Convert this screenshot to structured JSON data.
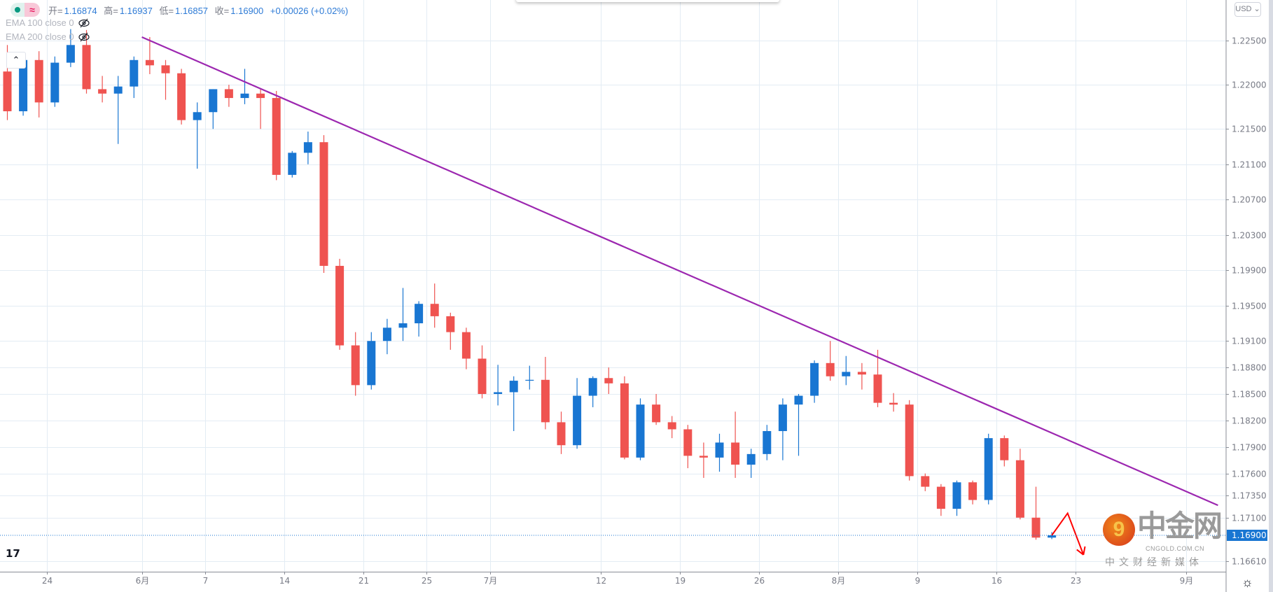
{
  "legend": {
    "open_label": "开=",
    "open": "1.16874",
    "high_label": "高=",
    "high": "1.16937",
    "low_label": "低=",
    "low": "1.16857",
    "close_label": "收=",
    "close": "1.16900",
    "change": "+0.00026 (+0.02%)"
  },
  "indicators": [
    {
      "label": "EMA 100 close 0",
      "icon": "eye-crossed-icon"
    },
    {
      "label": "EMA 200 close 0",
      "icon": "eye-crossed-icon"
    }
  ],
  "currency_button": "USD ⌄",
  "collapse_icon": "chevron-up-icon",
  "watermark": {
    "name": "中金网",
    "domain": "CNGOLD.COM.CN",
    "tagline": "中文财经新媒体"
  },
  "colors": {
    "up": "#1976d2",
    "down": "#ef5350",
    "trendline": "#9c27b0",
    "annotation": "#ff0000",
    "grid": "#e3ecf4",
    "last_price": "#1976d2"
  },
  "chart_data": {
    "type": "candlestick",
    "ylim": [
      1.162,
      1.2295
    ],
    "grid": true,
    "y_ticks": [
      "1.22500",
      "1.22000",
      "1.21500",
      "1.21100",
      "1.20700",
      "1.20300",
      "1.19900",
      "1.19500",
      "1.19100",
      "1.18800",
      "1.18500",
      "1.18200",
      "1.17900",
      "1.17600",
      "1.17350",
      "1.17100",
      "1.16610"
    ],
    "x_ticks": [
      {
        "label": "24",
        "date": "05-24"
      },
      {
        "label": "6月",
        "date": "06-01"
      },
      {
        "label": "7",
        "date": "06-07"
      },
      {
        "label": "14",
        "date": "06-14"
      },
      {
        "label": "21",
        "date": "06-21"
      },
      {
        "label": "25",
        "date": "06-25"
      },
      {
        "label": "7月",
        "date": "07-01"
      },
      {
        "label": "12",
        "date": "07-12"
      },
      {
        "label": "19",
        "date": "07-19"
      },
      {
        "label": "26",
        "date": "07-26"
      },
      {
        "label": "8月",
        "date": "08-02"
      },
      {
        "label": "9",
        "date": "08-09"
      },
      {
        "label": "16",
        "date": "08-16"
      },
      {
        "label": "23",
        "date": "08-23"
      },
      {
        "label": "9月",
        "date": "09-01"
      }
    ],
    "last_price": "1.16900",
    "candles": [
      {
        "d": "05-19",
        "o": 1.2215,
        "h": 1.2245,
        "l": 1.216,
        "c": 1.217
      },
      {
        "d": "05-20",
        "o": 1.217,
        "h": 1.2235,
        "l": 1.2165,
        "c": 1.2228
      },
      {
        "d": "05-21",
        "o": 1.2228,
        "h": 1.2238,
        "l": 1.2163,
        "c": 1.218
      },
      {
        "d": "05-24",
        "o": 1.218,
        "h": 1.2232,
        "l": 1.2175,
        "c": 1.2225
      },
      {
        "d": "05-25",
        "o": 1.2225,
        "h": 1.2263,
        "l": 1.222,
        "c": 1.2245
      },
      {
        "d": "05-26",
        "o": 1.2245,
        "h": 1.2262,
        "l": 1.219,
        "c": 1.2195
      },
      {
        "d": "05-27",
        "o": 1.2195,
        "h": 1.221,
        "l": 1.218,
        "c": 1.219
      },
      {
        "d": "05-28",
        "o": 1.219,
        "h": 1.221,
        "l": 1.2133,
        "c": 1.2198
      },
      {
        "d": "05-31",
        "o": 1.2198,
        "h": 1.2232,
        "l": 1.2185,
        "c": 1.2228
      },
      {
        "d": "06-01",
        "o": 1.2228,
        "h": 1.2254,
        "l": 1.2212,
        "c": 1.2222
      },
      {
        "d": "06-02",
        "o": 1.2222,
        "h": 1.2228,
        "l": 1.2183,
        "c": 1.2213
      },
      {
        "d": "06-03",
        "o": 1.2213,
        "h": 1.2218,
        "l": 1.2155,
        "c": 1.216
      },
      {
        "d": "06-04",
        "o": 1.216,
        "h": 1.218,
        "l": 1.2105,
        "c": 1.2169
      },
      {
        "d": "06-07",
        "o": 1.2169,
        "h": 1.2195,
        "l": 1.215,
        "c": 1.2195
      },
      {
        "d": "06-08",
        "o": 1.2195,
        "h": 1.22,
        "l": 1.2175,
        "c": 1.2185
      },
      {
        "d": "06-09",
        "o": 1.2185,
        "h": 1.2218,
        "l": 1.2178,
        "c": 1.219
      },
      {
        "d": "06-10",
        "o": 1.219,
        "h": 1.2195,
        "l": 1.215,
        "c": 1.2185
      },
      {
        "d": "06-11",
        "o": 1.2185,
        "h": 1.2193,
        "l": 1.2092,
        "c": 1.2098
      },
      {
        "d": "06-14",
        "o": 1.2098,
        "h": 1.2125,
        "l": 1.2095,
        "c": 1.2123
      },
      {
        "d": "06-15",
        "o": 1.2123,
        "h": 1.2147,
        "l": 1.211,
        "c": 1.2135
      },
      {
        "d": "06-16",
        "o": 1.2135,
        "h": 1.2143,
        "l": 1.1987,
        "c": 1.1995
      },
      {
        "d": "06-17",
        "o": 1.1995,
        "h": 1.2003,
        "l": 1.19,
        "c": 1.1905
      },
      {
        "d": "06-18",
        "o": 1.1905,
        "h": 1.192,
        "l": 1.1848,
        "c": 1.186
      },
      {
        "d": "06-21",
        "o": 1.186,
        "h": 1.192,
        "l": 1.1855,
        "c": 1.191
      },
      {
        "d": "06-22",
        "o": 1.191,
        "h": 1.1935,
        "l": 1.1895,
        "c": 1.1925
      },
      {
        "d": "06-23",
        "o": 1.1925,
        "h": 1.197,
        "l": 1.191,
        "c": 1.193
      },
      {
        "d": "06-24",
        "o": 1.193,
        "h": 1.1955,
        "l": 1.1915,
        "c": 1.1952
      },
      {
        "d": "06-25",
        "o": 1.1952,
        "h": 1.1975,
        "l": 1.1925,
        "c": 1.1938
      },
      {
        "d": "06-28",
        "o": 1.1938,
        "h": 1.1942,
        "l": 1.19,
        "c": 1.192
      },
      {
        "d": "06-29",
        "o": 1.192,
        "h": 1.1925,
        "l": 1.1878,
        "c": 1.189
      },
      {
        "d": "06-30",
        "o": 1.189,
        "h": 1.1905,
        "l": 1.1845,
        "c": 1.185
      },
      {
        "d": "07-01",
        "o": 1.185,
        "h": 1.1883,
        "l": 1.1837,
        "c": 1.1852
      },
      {
        "d": "07-02",
        "o": 1.1852,
        "h": 1.187,
        "l": 1.1808,
        "c": 1.1865
      },
      {
        "d": "07-05",
        "o": 1.1865,
        "h": 1.1882,
        "l": 1.1855,
        "c": 1.1866
      },
      {
        "d": "07-06",
        "o": 1.1866,
        "h": 1.1892,
        "l": 1.181,
        "c": 1.1818
      },
      {
        "d": "07-07",
        "o": 1.1818,
        "h": 1.183,
        "l": 1.1782,
        "c": 1.1792
      },
      {
        "d": "07-08",
        "o": 1.1792,
        "h": 1.1868,
        "l": 1.1788,
        "c": 1.1848
      },
      {
        "d": "07-09",
        "o": 1.1848,
        "h": 1.187,
        "l": 1.1835,
        "c": 1.1868
      },
      {
        "d": "07-12",
        "o": 1.1868,
        "h": 1.188,
        "l": 1.185,
        "c": 1.1862
      },
      {
        "d": "07-13",
        "o": 1.1862,
        "h": 1.187,
        "l": 1.1776,
        "c": 1.1778
      },
      {
        "d": "07-14",
        "o": 1.1778,
        "h": 1.1845,
        "l": 1.1775,
        "c": 1.1838
      },
      {
        "d": "07-15",
        "o": 1.1838,
        "h": 1.185,
        "l": 1.1815,
        "c": 1.1818
      },
      {
        "d": "07-16",
        "o": 1.1818,
        "h": 1.1825,
        "l": 1.18,
        "c": 1.181
      },
      {
        "d": "07-19",
        "o": 1.181,
        "h": 1.1815,
        "l": 1.1766,
        "c": 1.178
      },
      {
        "d": "07-20",
        "o": 1.178,
        "h": 1.1795,
        "l": 1.1755,
        "c": 1.1778
      },
      {
        "d": "07-21",
        "o": 1.1778,
        "h": 1.1805,
        "l": 1.1762,
        "c": 1.1795
      },
      {
        "d": "07-22",
        "o": 1.1795,
        "h": 1.183,
        "l": 1.1755,
        "c": 1.177
      },
      {
        "d": "07-23",
        "o": 1.177,
        "h": 1.1788,
        "l": 1.1755,
        "c": 1.1782
      },
      {
        "d": "07-26",
        "o": 1.1782,
        "h": 1.1815,
        "l": 1.1775,
        "c": 1.1808
      },
      {
        "d": "07-27",
        "o": 1.1808,
        "h": 1.1845,
        "l": 1.1775,
        "c": 1.1838
      },
      {
        "d": "07-28",
        "o": 1.1838,
        "h": 1.185,
        "l": 1.178,
        "c": 1.1848
      },
      {
        "d": "07-29",
        "o": 1.1848,
        "h": 1.1888,
        "l": 1.184,
        "c": 1.1885
      },
      {
        "d": "07-30",
        "o": 1.1885,
        "h": 1.191,
        "l": 1.1865,
        "c": 1.187
      },
      {
        "d": "08-02",
        "o": 1.187,
        "h": 1.1893,
        "l": 1.186,
        "c": 1.1875
      },
      {
        "d": "08-03",
        "o": 1.1875,
        "h": 1.1885,
        "l": 1.1855,
        "c": 1.1872
      },
      {
        "d": "08-04",
        "o": 1.1872,
        "h": 1.19,
        "l": 1.1835,
        "c": 1.184
      },
      {
        "d": "08-05",
        "o": 1.184,
        "h": 1.1851,
        "l": 1.183,
        "c": 1.1838
      },
      {
        "d": "08-06",
        "o": 1.1838,
        "h": 1.1843,
        "l": 1.1752,
        "c": 1.1757
      },
      {
        "d": "08-09",
        "o": 1.1757,
        "h": 1.176,
        "l": 1.174,
        "c": 1.1745
      },
      {
        "d": "08-10",
        "o": 1.1745,
        "h": 1.1748,
        "l": 1.1712,
        "c": 1.172
      },
      {
        "d": "08-11",
        "o": 1.172,
        "h": 1.1752,
        "l": 1.1712,
        "c": 1.175
      },
      {
        "d": "08-12",
        "o": 1.175,
        "h": 1.1752,
        "l": 1.1725,
        "c": 1.173
      },
      {
        "d": "08-13",
        "o": 1.173,
        "h": 1.1805,
        "l": 1.1725,
        "c": 1.18
      },
      {
        "d": "08-16",
        "o": 1.18,
        "h": 1.1803,
        "l": 1.1768,
        "c": 1.1775
      },
      {
        "d": "08-17",
        "o": 1.1775,
        "h": 1.1788,
        "l": 1.1708,
        "c": 1.171
      },
      {
        "d": "08-18",
        "o": 1.171,
        "h": 1.1745,
        "l": 1.1685,
        "c": 1.16874
      },
      {
        "d": "08-19",
        "o": 1.16874,
        "h": 1.16937,
        "l": 1.16857,
        "c": 1.169
      }
    ],
    "trendline": [
      {
        "d": "06-01",
        "p": 1.2254
      },
      {
        "d": "09-03",
        "p": 1.1724
      }
    ],
    "annotation_arrow": [
      {
        "d": "08-19",
        "p": 1.169
      },
      {
        "d": "08-20",
        "p": 1.1715
      },
      {
        "d": "08-23",
        "p": 1.1668
      }
    ]
  }
}
